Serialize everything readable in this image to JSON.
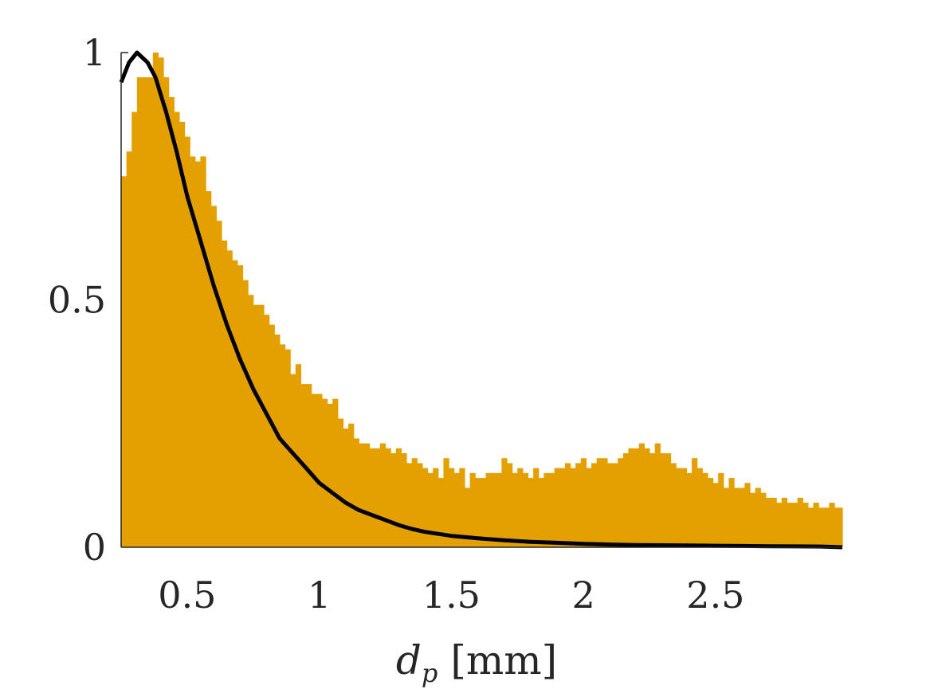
{
  "chart_data": {
    "type": "bar",
    "xlabel_main": "d",
    "xlabel_sub": "p",
    "xlabel_unit": "[mm]",
    "xlim": [
      0.25,
      2.98
    ],
    "ylim": [
      0,
      1
    ],
    "x_ticks": [
      0.5,
      1,
      1.5,
      2,
      2.5
    ],
    "x_tick_labels": [
      "0.5",
      "1",
      "1.5",
      "2",
      "2.5"
    ],
    "y_ticks": [
      0,
      0.5,
      1
    ],
    "y_tick_labels": [
      "0",
      "0.5",
      "1"
    ],
    "grid": false,
    "legend": "none",
    "colors": {
      "bars": "#E3A000",
      "curve": "#000000",
      "text": "#262626"
    },
    "histogram": {
      "bin_start": 0.25,
      "bin_width": 0.02,
      "values": [
        0.75,
        0.8,
        0.88,
        0.95,
        0.95,
        0.95,
        1.0,
        0.99,
        0.95,
        0.91,
        0.88,
        0.86,
        0.83,
        0.79,
        0.78,
        0.79,
        0.72,
        0.69,
        0.66,
        0.62,
        0.6,
        0.58,
        0.57,
        0.54,
        0.51,
        0.49,
        0.49,
        0.47,
        0.45,
        0.43,
        0.41,
        0.4,
        0.35,
        0.37,
        0.33,
        0.33,
        0.31,
        0.31,
        0.3,
        0.29,
        0.3,
        0.26,
        0.24,
        0.25,
        0.22,
        0.21,
        0.21,
        0.2,
        0.2,
        0.21,
        0.2,
        0.19,
        0.2,
        0.19,
        0.17,
        0.18,
        0.17,
        0.16,
        0.15,
        0.16,
        0.14,
        0.18,
        0.16,
        0.15,
        0.16,
        0.12,
        0.15,
        0.14,
        0.14,
        0.15,
        0.15,
        0.15,
        0.18,
        0.17,
        0.15,
        0.16,
        0.15,
        0.14,
        0.16,
        0.14,
        0.15,
        0.15,
        0.16,
        0.16,
        0.17,
        0.16,
        0.17,
        0.18,
        0.16,
        0.17,
        0.18,
        0.18,
        0.17,
        0.17,
        0.18,
        0.19,
        0.2,
        0.2,
        0.21,
        0.2,
        0.19,
        0.21,
        0.19,
        0.19,
        0.17,
        0.16,
        0.16,
        0.15,
        0.18,
        0.16,
        0.15,
        0.14,
        0.13,
        0.15,
        0.12,
        0.14,
        0.12,
        0.12,
        0.13,
        0.11,
        0.12,
        0.11,
        0.1,
        0.1,
        0.09,
        0.1,
        0.09,
        0.09,
        0.1,
        0.09,
        0.08,
        0.09,
        0.08,
        0.08,
        0.09,
        0.08,
        0.08
      ]
    },
    "curve": {
      "x": [
        0.25,
        0.28,
        0.31,
        0.35,
        0.38,
        0.42,
        0.46,
        0.5,
        0.55,
        0.6,
        0.65,
        0.7,
        0.75,
        0.8,
        0.85,
        0.9,
        0.95,
        1.0,
        1.05,
        1.1,
        1.15,
        1.2,
        1.25,
        1.3,
        1.35,
        1.4,
        1.45,
        1.5,
        1.6,
        1.7,
        1.8,
        1.9,
        2.0,
        2.1,
        2.2,
        2.3,
        2.4,
        2.5,
        2.6,
        2.7,
        2.8,
        2.9,
        2.98
      ],
      "y": [
        0.94,
        0.98,
        1.0,
        0.98,
        0.95,
        0.88,
        0.8,
        0.71,
        0.62,
        0.53,
        0.45,
        0.38,
        0.32,
        0.27,
        0.22,
        0.19,
        0.16,
        0.13,
        0.11,
        0.09,
        0.075,
        0.065,
        0.055,
        0.045,
        0.037,
        0.031,
        0.027,
        0.023,
        0.018,
        0.014,
        0.011,
        0.009,
        0.007,
        0.0055,
        0.0045,
        0.004,
        0.0035,
        0.003,
        0.0025,
        0.002,
        0.0018,
        0.0015,
        0.0
      ]
    }
  }
}
